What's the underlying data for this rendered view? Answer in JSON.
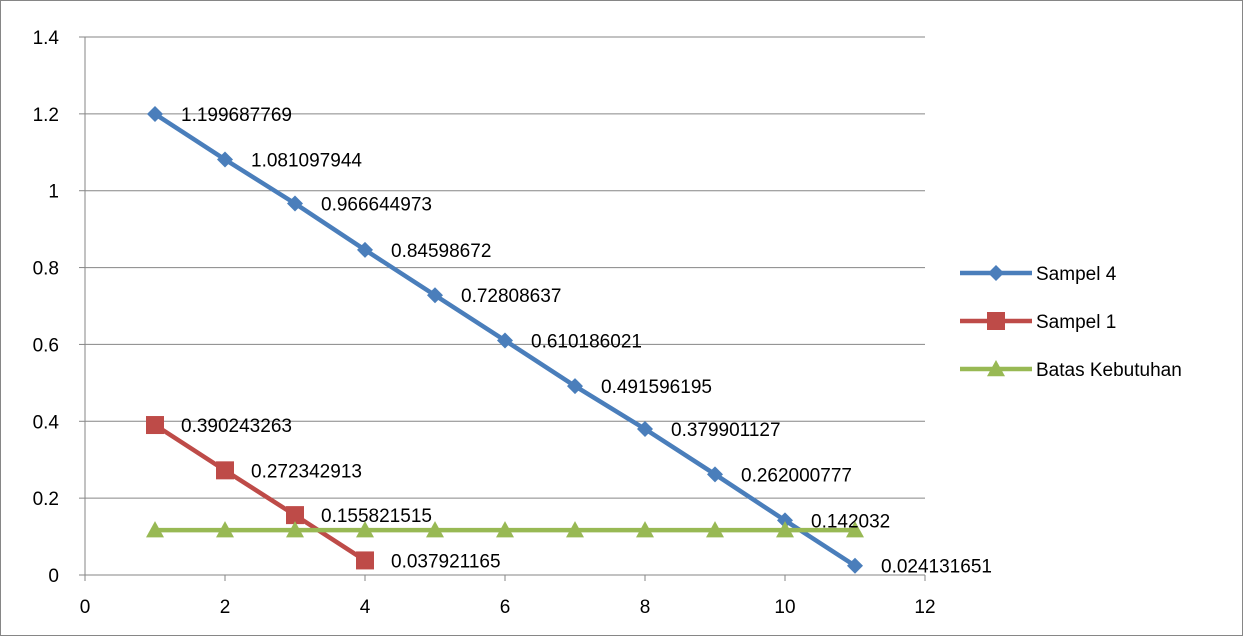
{
  "chart_data": {
    "type": "line",
    "title": "",
    "xlabel": "",
    "ylabel": "",
    "xlim": [
      0,
      12
    ],
    "ylim": [
      0,
      1.4
    ],
    "x_ticks": [
      "0",
      "2",
      "4",
      "6",
      "8",
      "10",
      "12"
    ],
    "y_ticks": [
      "0",
      "0.2",
      "0.4",
      "0.6",
      "0.8",
      "1",
      "1.2",
      "1.4"
    ],
    "grid": "horizontal",
    "legend_position": "right",
    "series": [
      {
        "name": "Sampel 4",
        "color": "#4A7EBB",
        "marker": "diamond",
        "x": [
          1,
          2,
          3,
          4,
          5,
          6,
          7,
          8,
          9,
          10,
          11
        ],
        "y": [
          1.199687769,
          1.081097944,
          0.966644973,
          0.84598672,
          0.72808637,
          0.610186021,
          0.491596195,
          0.379901127,
          0.262000777,
          0.142032,
          0.024131651
        ],
        "labels": [
          "1.199687769",
          "1.081097944",
          "0.966644973",
          "0.84598672",
          "0.72808637",
          "0.610186021",
          "0.491596195",
          "0.379901127",
          "0.262000777",
          "0.142032",
          "0.024131651"
        ]
      },
      {
        "name": "Sampel 1",
        "color": "#BE4B48",
        "marker": "square",
        "x": [
          1,
          2,
          3,
          4
        ],
        "y": [
          0.390243263,
          0.272342913,
          0.155821515,
          0.037921165
        ],
        "labels": [
          "0.390243263",
          "0.272342913",
          "0.155821515",
          "0.037921165"
        ]
      },
      {
        "name": "Batas Kebutuhan",
        "color": "#98B954",
        "marker": "triangle",
        "x": [
          1,
          2,
          3,
          4,
          5,
          6,
          7,
          8,
          9,
          10,
          11
        ],
        "y": [
          0.1167,
          0.1167,
          0.1167,
          0.1167,
          0.1167,
          0.1167,
          0.1167,
          0.1167,
          0.1167,
          0.1167,
          0.1167
        ],
        "labels": []
      }
    ]
  }
}
